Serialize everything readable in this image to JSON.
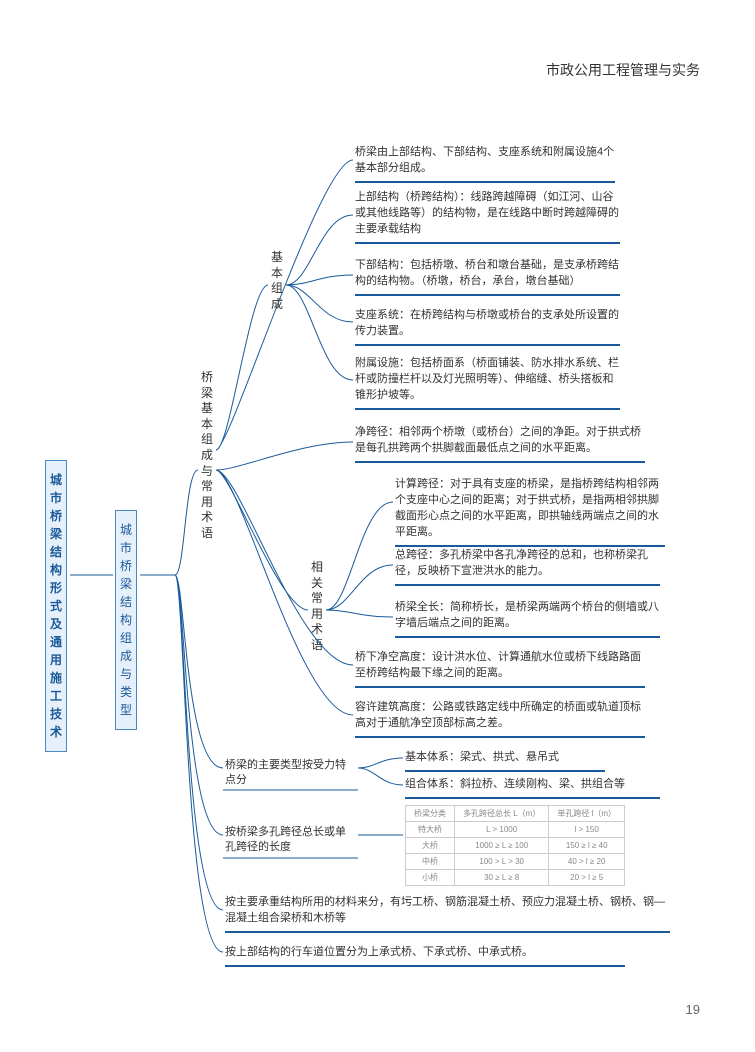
{
  "header": "市政公用工程管理与实务",
  "page_number": "19",
  "colors": {
    "accent": "#1a5a9a",
    "box_bg": "#e6f0fa",
    "box_border": "#4a89c8",
    "text": "#333333"
  },
  "root": {
    "label": "城市桥梁结构形式及通用施工技术"
  },
  "level2": {
    "label": "城市桥梁结构组成与类型"
  },
  "branch1": {
    "label": "桥梁基本组成与常用术语",
    "intro": "桥梁由上部结构、下部结构、支座系统和附属设施4个基本部分组成。",
    "sub1": {
      "label": "基本组成",
      "items": [
        "上部结构（桥跨结构）：线路跨越障碍（如江河、山谷或其他线路等）的结构物，是在线路中断时跨越障碍的主要承载结构",
        "下部结构：包括桥墩、桥台和墩台基础，是支承桥跨结构的结构物。（桥墩，桥台，承台，墩台基础）",
        "支座系统：在桥跨结构与桥墩或桥台的支承处所设置的传力装置。",
        "附属设施：包括桥面系（桥面铺装、防水排水系统、栏杆或防撞栏杆以及灯光照明等）、伸缩缝、桥头搭板和锥形护坡等。"
      ]
    },
    "sub2": {
      "label": "相关常用术语",
      "items": [
        "净跨径：相邻两个桥墩（或桥台）之间的净距。对于拱式桥是每孔拱跨两个拱脚截面最低点之间的水平距离。",
        "计算跨径：对于具有支座的桥梁，是指桥跨结构相邻两个支座中心之间的距离；对于拱式桥，是指两相邻拱脚截面形心点之间的水平距离，即拱轴线两端点之间的水平距离。",
        "总跨径：多孔桥梁中各孔净跨径的总和，也称桥梁孔径，反映桥下宣泄洪水的能力。",
        "桥梁全长：简称桥长，是桥梁两端两个桥台的侧墙或八字墙后端点之间的距离。",
        "桥下净空高度：设计洪水位、计算通航水位或桥下线路路面至桥跨结构最下缘之间的距离。",
        "容许建筑高度：公路或铁路定线中所确定的桥面或轨道顶标高对于通航净空顶部标高之差。"
      ]
    }
  },
  "branch2": {
    "label": "桥梁的主要类型按受力特点分",
    "items": [
      "基本体系：梁式、拱式、悬吊式",
      "组合体系：斜拉桥、连续刚构、梁、拱组合等"
    ]
  },
  "branch3": {
    "label": "按桥梁多孔跨径总长或单孔跨径的长度",
    "table": {
      "headers": [
        "桥梁分类",
        "多孔跨径总长 L（m）",
        "单孔跨径 l（m）"
      ],
      "rows": [
        [
          "特大桥",
          "L > 1000",
          "l > 150"
        ],
        [
          "大桥",
          "1000 ≥ L ≥ 100",
          "150 ≥ l ≥ 40"
        ],
        [
          "中桥",
          "100 > L > 30",
          "40 > l ≥ 20"
        ],
        [
          "小桥",
          "30 ≥ L ≥ 8",
          "20 > l ≥ 5"
        ]
      ]
    }
  },
  "branch4": {
    "text": "按主要承重结构所用的材料来分，有圬工桥、钢筋混凝土桥、预应力混凝土桥、钢桥、钢—混凝土组合梁桥和木桥等"
  },
  "branch5": {
    "text": "按上部结构的行车道位置分为上承式桥、下承式桥、中承式桥。"
  }
}
